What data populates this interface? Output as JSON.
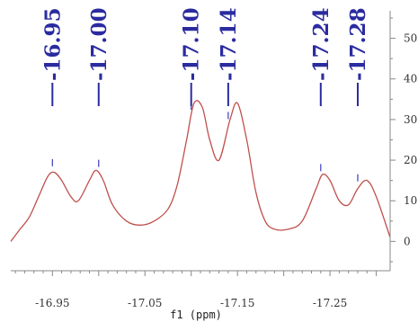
{
  "chart_data": {
    "type": "line",
    "title": "",
    "xlabel": "f1 (ppm)",
    "ylabel": "",
    "x_reversed": true,
    "xlim": [
      -16.905,
      -17.315
    ],
    "ylim": [
      -7,
      55
    ],
    "x_ticks": [
      {
        "value": -16.95,
        "label": "-16.95"
      },
      {
        "value": -17.05,
        "label": "-17.05"
      },
      {
        "value": -17.15,
        "label": "-17.15"
      },
      {
        "value": -17.25,
        "label": "-17.25"
      }
    ],
    "y_ticks": [
      {
        "value": 0,
        "label": "0"
      },
      {
        "value": 10,
        "label": "10"
      },
      {
        "value": 20,
        "label": "20"
      },
      {
        "value": 30,
        "label": "30"
      },
      {
        "value": 40,
        "label": "40"
      },
      {
        "value": 50,
        "label": "50"
      }
    ],
    "peak_labels": [
      {
        "ppm": -16.95,
        "label": "-16.95"
      },
      {
        "ppm": -17.0,
        "label": "-17.00"
      },
      {
        "ppm": -17.1,
        "label": "-17.10"
      },
      {
        "ppm": -17.14,
        "label": "-17.14"
      },
      {
        "ppm": -17.24,
        "label": "-17.24"
      },
      {
        "ppm": -17.28,
        "label": "-17.28"
      }
    ],
    "series": [
      {
        "color": "#c0504d",
        "x": [
          -16.905,
          -16.915,
          -16.925,
          -16.935,
          -16.945,
          -16.952,
          -16.96,
          -16.97,
          -16.978,
          -16.99,
          -16.997,
          -17.005,
          -17.015,
          -17.03,
          -17.045,
          -17.06,
          -17.075,
          -17.085,
          -17.095,
          -17.103,
          -17.112,
          -17.12,
          -17.13,
          -17.142,
          -17.15,
          -17.16,
          -17.17,
          -17.18,
          -17.19,
          -17.205,
          -17.22,
          -17.235,
          -17.242,
          -17.25,
          -17.26,
          -17.27,
          -17.28,
          -17.29,
          -17.3,
          -17.315
        ],
        "values": [
          0,
          3,
          6,
          11,
          16,
          17,
          15,
          11,
          10,
          15,
          17.5,
          15,
          9,
          5,
          4,
          5,
          8,
          14,
          25,
          34,
          33,
          25,
          20,
          30,
          34,
          25,
          12,
          5,
          3,
          3,
          5,
          13,
          16.5,
          15,
          10,
          9,
          13,
          15,
          11,
          1
        ]
      }
    ]
  }
}
